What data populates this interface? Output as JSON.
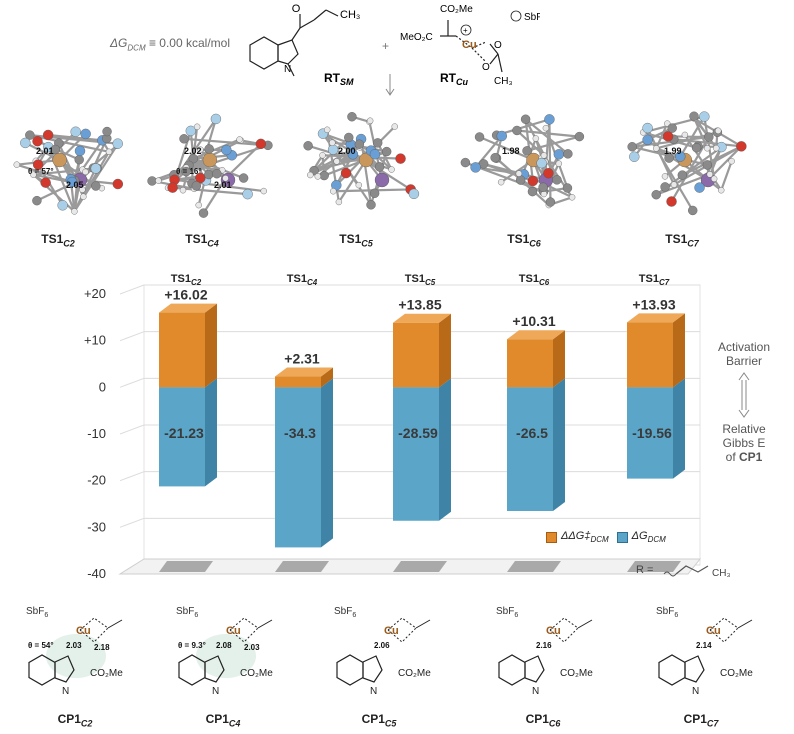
{
  "header": {
    "delta_g_label": "ΔG",
    "delta_g_sub": "DCM",
    "delta_g_value": "≡ 0.00 kcal/mol",
    "rt_sm": "RT",
    "rt_sm_sub": "SM",
    "rt_cu": "RT",
    "rt_cu_sub": "Cu",
    "plus": "+",
    "sbf6": "SbF",
    "sbf6_sub": "6",
    "cu": "Cu",
    "co2me": "CO₂Me",
    "meo2c": "MeO₂C",
    "ch3": "CH₃",
    "n": "N"
  },
  "ts_structures": [
    {
      "name": "TS1",
      "sub": "C2",
      "dist1": "2.01",
      "dist2": "2.05",
      "angle": "θ = 57°"
    },
    {
      "name": "TS1",
      "sub": "C4",
      "dist1": "2.02",
      "dist2": "2.01",
      "angle": "θ = 16°"
    },
    {
      "name": "TS1",
      "sub": "C5",
      "dist1": "2.00"
    },
    {
      "name": "TS1",
      "sub": "C6",
      "dist1": "1.98"
    },
    {
      "name": "TS1",
      "sub": "C7",
      "dist1": "1.99"
    }
  ],
  "side_labels": {
    "activation": "Activation",
    "barrier": "Barrier",
    "relative": "Relative",
    "gibbs": "Gibbs E",
    "of": "of",
    "cp1": "CP1"
  },
  "legend": {
    "ddg": "ΔΔG‡",
    "ddg_sub": "DCM",
    "dg": "ΔG",
    "dg_sub": "DCM",
    "r_label": "R ="
  },
  "chart_data": {
    "type": "bar",
    "categories": [
      "TS1C2",
      "TS1C4",
      "TS1C5",
      "TS1C6",
      "TS1C7"
    ],
    "category_labels": [
      {
        "main": "TS1",
        "sub": "C2"
      },
      {
        "main": "TS1",
        "sub": "C4"
      },
      {
        "main": "TS1",
        "sub": "C5"
      },
      {
        "main": "TS1",
        "sub": "C6"
      },
      {
        "main": "TS1",
        "sub": "C7"
      }
    ],
    "series": [
      {
        "name": "ΔΔG‡DCM",
        "values": [
          16.02,
          2.31,
          13.85,
          10.31,
          13.93
        ],
        "labels": [
          "+16.02",
          "+2.31",
          "+13.85",
          "+10.31",
          "+13.93"
        ],
        "color": "#E08A2B"
      },
      {
        "name": "ΔGDCM",
        "values": [
          -21.23,
          -34.3,
          -28.59,
          -26.5,
          -19.56
        ],
        "labels": [
          "-21.23",
          "-34.3",
          "-28.59",
          "-26.5",
          "-19.56"
        ],
        "color": "#5AA5C8"
      }
    ],
    "yticks": [
      20,
      10,
      0,
      -10,
      -20,
      -30,
      -40
    ],
    "ytick_labels": [
      "+20",
      "+10",
      "0",
      "-10",
      "-20",
      "-30",
      "-40"
    ],
    "ylim": [
      -40,
      20
    ],
    "grid": true,
    "legend": "bottom-right"
  },
  "cp_structures": [
    {
      "name": "CP1",
      "sub": "C2",
      "d1": "2.03",
      "d2": "2.18",
      "angle": "θ = 54°"
    },
    {
      "name": "CP1",
      "sub": "C4",
      "d1": "2.08",
      "d2": "2.03",
      "angle": "θ = 9.3°"
    },
    {
      "name": "CP1",
      "sub": "C5",
      "d1": "2.06"
    },
    {
      "name": "CP1",
      "sub": "C6",
      "d1": "2.16"
    },
    {
      "name": "CP1",
      "sub": "C7",
      "d1": "2.14"
    }
  ]
}
